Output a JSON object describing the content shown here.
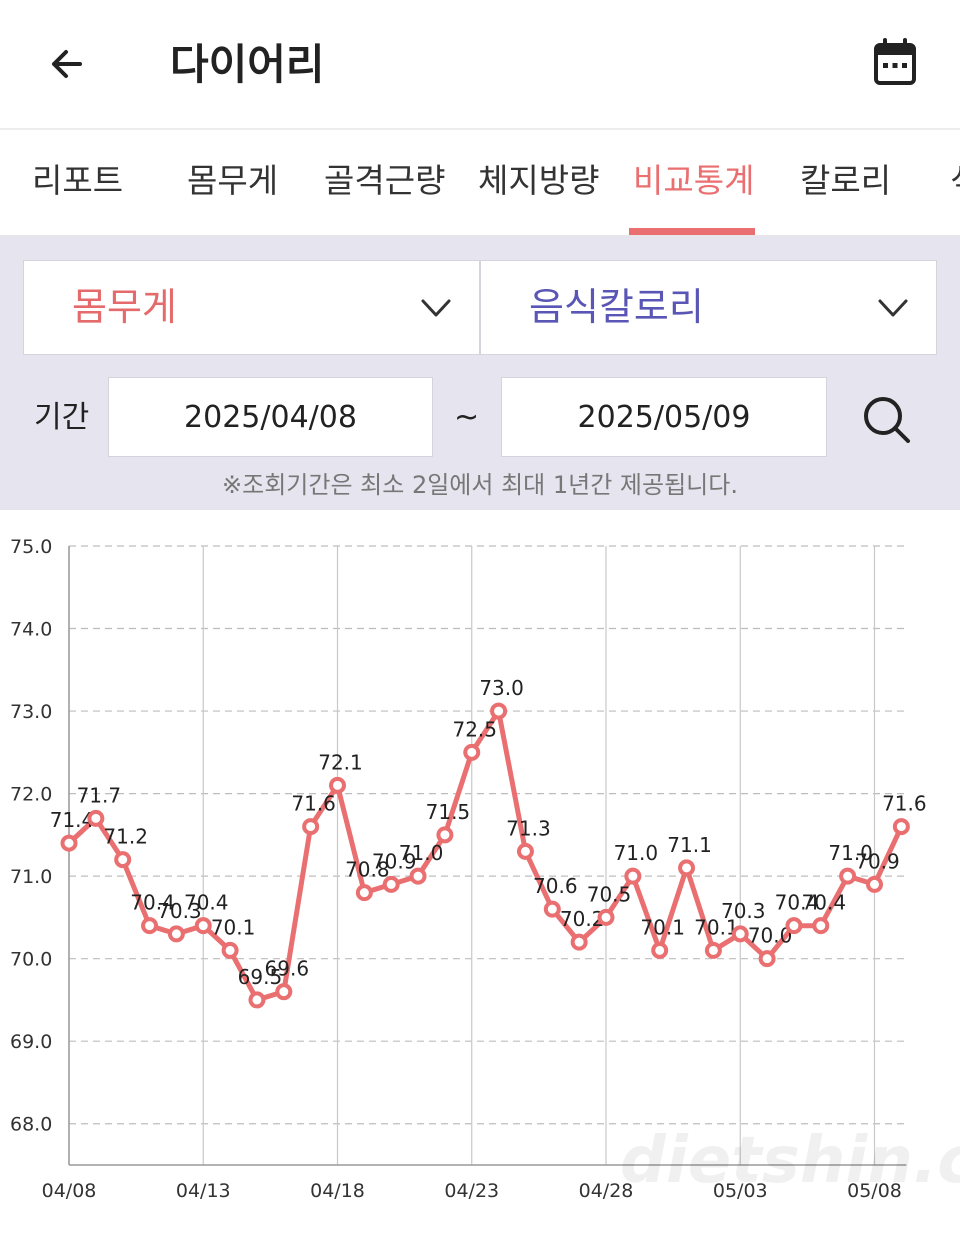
{
  "header": {
    "title": "다이어리",
    "back_icon": "arrow-left-icon",
    "calendar_icon": "calendar-icon"
  },
  "tabs": [
    {
      "label": "리포트"
    },
    {
      "label": "몸무게"
    },
    {
      "label": "골격근량"
    },
    {
      "label": "체지방량"
    },
    {
      "label": "비교통계",
      "active": true
    },
    {
      "label": "칼로리"
    },
    {
      "label": "식"
    }
  ],
  "filters": {
    "left_metric": "몸무게",
    "right_metric": "음식칼로리",
    "period_label": "기간",
    "date_from": "2025/04/08",
    "tilde": "~",
    "date_to": "2025/05/09",
    "notice": "※조회기간은 최소 2일에서 최대 1년간 제공됩니다."
  },
  "colors": {
    "accent": "#ea6f70",
    "secondary": "#5a56b5",
    "panel_bg": "#e6e4ee"
  },
  "chart_data": {
    "type": "line",
    "x": [
      "04/08",
      "04/09",
      "04/10",
      "04/11",
      "04/12",
      "04/13",
      "04/14",
      "04/15",
      "04/16",
      "04/17",
      "04/18",
      "04/19",
      "04/20",
      "04/21",
      "04/22",
      "04/23",
      "04/24",
      "04/25",
      "04/26",
      "04/27",
      "04/28",
      "04/29",
      "04/30",
      "05/01",
      "05/02",
      "05/03",
      "05/04",
      "05/05",
      "05/06",
      "05/07",
      "05/08",
      "05/09"
    ],
    "values": [
      71.4,
      71.7,
      71.2,
      70.4,
      70.3,
      70.4,
      70.1,
      69.5,
      69.6,
      71.6,
      72.1,
      70.8,
      70.9,
      71.0,
      71.5,
      72.5,
      73.0,
      71.3,
      70.6,
      70.2,
      70.5,
      71.0,
      70.1,
      71.1,
      70.1,
      70.3,
      70.0,
      70.4,
      70.4,
      71.0,
      70.9,
      71.6
    ],
    "tick_labels": [
      "04/08",
      "04/13",
      "04/18",
      "04/23",
      "04/28",
      "05/03",
      "05/08"
    ],
    "y_ticks": [
      "68.0",
      "69.0",
      "70.0",
      "71.0",
      "72.0",
      "73.0",
      "74.0",
      "75.0"
    ],
    "ylim": [
      67.5,
      75.0
    ],
    "grid": true,
    "watermark": "dietshin.com"
  }
}
